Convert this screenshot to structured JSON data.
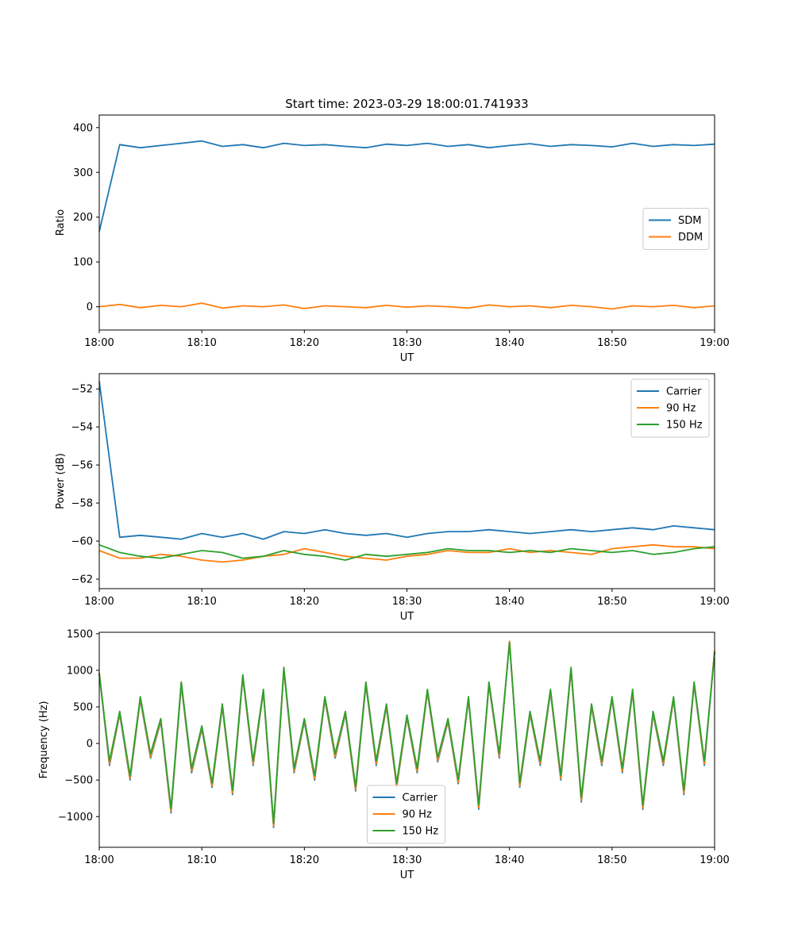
{
  "figure": {
    "title": "Start time: 2023-03-29 18:00:01.741933"
  },
  "chart_data": [
    {
      "type": "line",
      "title": "Start time: 2023-03-29 18:00:01.741933",
      "xlabel": "UT",
      "ylabel": "Ratio",
      "xlim": [
        0,
        60
      ],
      "ylim": [
        -52,
        428
      ],
      "x_ticks": [
        0,
        10,
        20,
        30,
        40,
        50,
        60
      ],
      "x_tick_labels": [
        "18:00",
        "18:10",
        "18:20",
        "18:30",
        "18:40",
        "18:50",
        "19:00"
      ],
      "y_ticks": [
        0,
        100,
        200,
        300,
        400
      ],
      "y_tick_labels": [
        "0",
        "100",
        "200",
        "300",
        "400"
      ],
      "grid": false,
      "legend_position": "center-right",
      "x_step_minutes": 2,
      "series": [
        {
          "name": "SDM",
          "color": "#1f77b4",
          "values": [
            168,
            362,
            355,
            360,
            365,
            370,
            358,
            362,
            355,
            365,
            360,
            362,
            358,
            355,
            363,
            360,
            365,
            358,
            362,
            355,
            360,
            364,
            358,
            362,
            360,
            357,
            365,
            358,
            362,
            360,
            363
          ]
        },
        {
          "name": "DDM",
          "color": "#ff7f0e",
          "values": [
            0,
            5,
            -2,
            3,
            0,
            8,
            -3,
            2,
            0,
            4,
            -4,
            2,
            0,
            -2,
            3,
            -1,
            2,
            0,
            -3,
            4,
            0,
            2,
            -2,
            3,
            0,
            -5,
            2,
            0,
            3,
            -2,
            2
          ]
        }
      ]
    },
    {
      "type": "line",
      "xlabel": "UT",
      "ylabel": "Power (dB)",
      "xlim": [
        0,
        60
      ],
      "ylim": [
        -62.5,
        -51.2
      ],
      "x_ticks": [
        0,
        10,
        20,
        30,
        40,
        50,
        60
      ],
      "x_tick_labels": [
        "18:00",
        "18:10",
        "18:20",
        "18:30",
        "18:40",
        "18:50",
        "19:00"
      ],
      "y_ticks": [
        -62,
        -60,
        -58,
        -56,
        -54,
        -52
      ],
      "y_tick_labels": [
        "−62",
        "−60",
        "−58",
        "−56",
        "−54",
        "−52"
      ],
      "grid": false,
      "legend_position": "top-right",
      "x_step_minutes": 2,
      "series": [
        {
          "name": "Carrier",
          "color": "#1f77b4",
          "values": [
            -51.6,
            -59.8,
            -59.7,
            -59.8,
            -59.9,
            -59.6,
            -59.8,
            -59.6,
            -59.9,
            -59.5,
            -59.6,
            -59.4,
            -59.6,
            -59.7,
            -59.6,
            -59.8,
            -59.6,
            -59.5,
            -59.5,
            -59.4,
            -59.5,
            -59.6,
            -59.5,
            -59.4,
            -59.5,
            -59.4,
            -59.3,
            -59.4,
            -59.2,
            -59.3,
            -59.4
          ]
        },
        {
          "name": "90 Hz",
          "color": "#ff7f0e",
          "values": [
            -60.5,
            -60.9,
            -60.9,
            -60.7,
            -60.8,
            -61.0,
            -61.1,
            -61.0,
            -60.8,
            -60.7,
            -60.4,
            -60.6,
            -60.8,
            -60.9,
            -61.0,
            -60.8,
            -60.7,
            -60.5,
            -60.6,
            -60.6,
            -60.4,
            -60.6,
            -60.5,
            -60.6,
            -60.7,
            -60.4,
            -60.3,
            -60.2,
            -60.3,
            -60.3,
            -60.4
          ]
        },
        {
          "name": "150 Hz",
          "color": "#2ca02c",
          "values": [
            -60.2,
            -60.6,
            -60.8,
            -60.9,
            -60.7,
            -60.5,
            -60.6,
            -60.9,
            -60.8,
            -60.5,
            -60.7,
            -60.8,
            -61.0,
            -60.7,
            -60.8,
            -60.7,
            -60.6,
            -60.4,
            -60.5,
            -60.5,
            -60.6,
            -60.5,
            -60.6,
            -60.4,
            -60.5,
            -60.6,
            -60.5,
            -60.7,
            -60.6,
            -60.4,
            -60.3
          ]
        }
      ]
    },
    {
      "type": "line",
      "xlabel": "UT",
      "ylabel": "Frequency (Hz)",
      "xlim": [
        0,
        60
      ],
      "ylim": [
        -1420,
        1520
      ],
      "x_ticks": [
        0,
        10,
        20,
        30,
        40,
        50,
        60
      ],
      "x_tick_labels": [
        "18:00",
        "18:10",
        "18:20",
        "18:30",
        "18:40",
        "18:50",
        "19:00"
      ],
      "y_ticks": [
        -1000,
        -500,
        0,
        500,
        1000,
        1500
      ],
      "y_tick_labels": [
        "−1000",
        "−500",
        "0",
        "500",
        "1000",
        "1500"
      ],
      "grid": false,
      "legend_position": "bottom-center",
      "x_step_minutes": 1,
      "series": [
        {
          "name": "Carrier",
          "color": "#1f77b4",
          "values": [
            950,
            -300,
            400,
            -500,
            600,
            -200,
            300,
            -950,
            800,
            -400,
            200,
            -600,
            500,
            -700,
            900,
            -300,
            700,
            -1150,
            1000,
            -400,
            300,
            -500,
            600,
            -200,
            400,
            -650,
            800,
            -300,
            500,
            -600,
            350,
            -400,
            700,
            -250,
            300,
            -550,
            600,
            -900,
            800,
            -200,
            1380,
            -600,
            400,
            -300,
            700,
            -500,
            1000,
            -800,
            500,
            -300,
            600,
            -400,
            700,
            -900,
            400,
            -300,
            600,
            -700,
            800,
            -300,
            1250
          ]
        },
        {
          "name": "90 Hz",
          "color": "#ff7f0e",
          "values": [
            970,
            -280,
            420,
            -480,
            620,
            -180,
            320,
            -930,
            820,
            -380,
            220,
            -580,
            520,
            -680,
            920,
            -280,
            720,
            -1130,
            1020,
            -380,
            320,
            -480,
            620,
            -180,
            420,
            -630,
            820,
            -280,
            520,
            -580,
            370,
            -380,
            720,
            -230,
            320,
            -530,
            620,
            -880,
            820,
            -180,
            1400,
            -580,
            420,
            -280,
            720,
            -480,
            1020,
            -780,
            520,
            -280,
            620,
            -380,
            720,
            -880,
            420,
            -280,
            620,
            -680,
            820,
            -280,
            1270
          ]
        },
        {
          "name": "150 Hz",
          "color": "#2ca02c",
          "values": [
            960,
            -240,
            440,
            -440,
            640,
            -140,
            340,
            -890,
            840,
            -340,
            240,
            -540,
            540,
            -640,
            940,
            -240,
            740,
            -1090,
            1040,
            -340,
            340,
            -440,
            640,
            -140,
            440,
            -590,
            840,
            -240,
            540,
            -540,
            390,
            -340,
            740,
            -190,
            340,
            -490,
            640,
            -840,
            840,
            -140,
            1380,
            -540,
            440,
            -240,
            740,
            -440,
            1040,
            -740,
            540,
            -240,
            640,
            -340,
            740,
            -840,
            440,
            -240,
            640,
            -640,
            840,
            -240,
            1250
          ]
        }
      ]
    }
  ]
}
